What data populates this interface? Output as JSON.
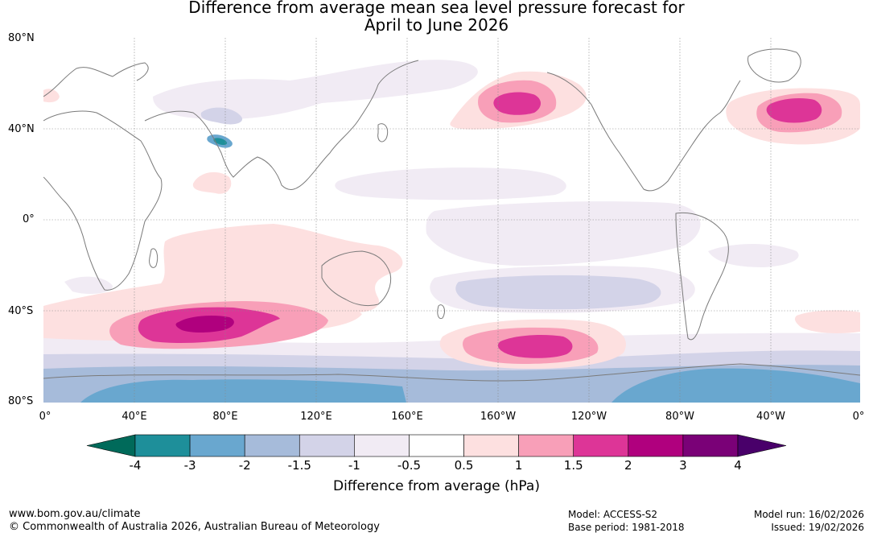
{
  "title": {
    "line1": "Difference from average mean sea level pressure forecast for",
    "line2": "April to June 2026"
  },
  "map": {
    "lat_labels": [
      "80°N",
      "40°N",
      "0°",
      "40°S",
      "80°S"
    ],
    "lon_labels": [
      "0°",
      "40°E",
      "80°E",
      "120°E",
      "160°E",
      "160°W",
      "120°W",
      "80°W",
      "40°W",
      "0°"
    ],
    "anomaly_regions": [
      {
        "name": "North Pacific high",
        "category": "1.5 to 2"
      },
      {
        "name": "North Atlantic high",
        "category": "1.5 to 2"
      },
      {
        "name": "Southern Indian Ocean high",
        "category": "2 to 3"
      },
      {
        "name": "South Pacific high",
        "category": "1.5 to 2"
      },
      {
        "name": "Antarctic low",
        "category": "-3 to -2"
      },
      {
        "name": "Tibetan Plateau low",
        "category": "-4 to -3"
      }
    ]
  },
  "colorbar": {
    "ticks": [
      "-4",
      "-3",
      "-2",
      "-1.5",
      "-1",
      "-0.5",
      "0.5",
      "1",
      "1.5",
      "2",
      "3",
      "4"
    ],
    "colors": [
      "#006a5a",
      "#1e8f9a",
      "#69a7cf",
      "#a6bbda",
      "#d3d3e8",
      "#f1ebf4",
      "#ffffff",
      "#fde0e0",
      "#f89fb8",
      "#dd3597",
      "#b0007e",
      "#7a0177",
      "#49006a"
    ],
    "title": "Difference from average (hPa)"
  },
  "footer": {
    "url": "www.bom.gov.au/climate",
    "copyright": "© Commonwealth of Australia 2026, Australian Bureau of Meteorology",
    "model": "Model: ACCESS-S2",
    "base_period": "Base period: 1981-2018",
    "model_run": "Model run: 16/02/2026",
    "issued": "Issued: 19/02/2026"
  }
}
